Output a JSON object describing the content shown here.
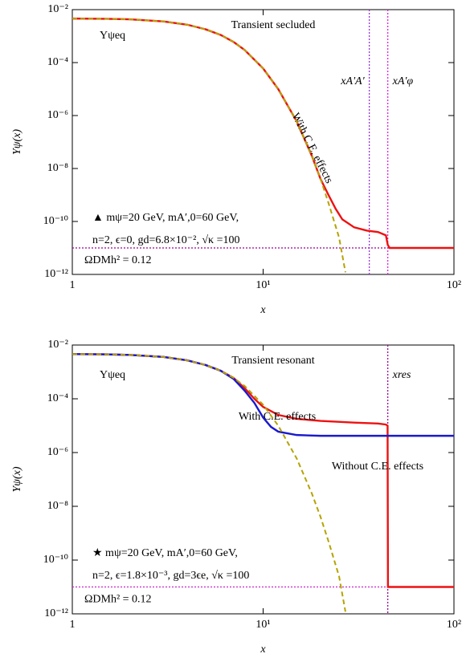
{
  "chart_data": [
    {
      "type": "line",
      "title": "Transient secluded",
      "xlabel": "x",
      "ylabel": "Yψ(x)",
      "xscale": "log",
      "yscale": "log",
      "xlim": [
        1,
        100
      ],
      "ylim": [
        1e-12,
        0.01
      ],
      "xticks": [
        1,
        {
          "value": 10,
          "label": "10¹"
        },
        {
          "value": 100,
          "label": "10²"
        }
      ],
      "yticks": [
        {
          "value": 1e-12,
          "label": "10⁻¹²"
        },
        {
          "value": 1e-10,
          "label": "10⁻¹⁰"
        },
        {
          "value": 1e-08,
          "label": "10⁻⁸"
        },
        {
          "value": 1e-06,
          "label": "10⁻⁶"
        },
        {
          "value": 0.0001,
          "label": "10⁻⁴"
        },
        {
          "value": 0.01,
          "label": "10⁻²"
        }
      ],
      "series": [
        {
          "name": "With C.E. effects",
          "color": "#ee1111",
          "dash": false,
          "x": [
            1,
            1.5,
            2,
            3,
            4,
            5,
            6,
            7,
            8,
            10,
            12,
            15,
            18,
            20,
            22,
            24,
            26,
            30,
            35,
            40,
            44,
            45,
            46,
            100
          ],
          "values": [
            0.0046,
            0.0045,
            0.0043,
            0.0036,
            0.0027,
            0.0018,
            0.0011,
            0.0006,
            0.0003,
            6e-05,
            1e-05,
            6e-07,
            3e-08,
            4e-09,
            1e-09,
            3e-10,
            1.2e-10,
            6e-11,
            4.5e-11,
            4e-11,
            3e-11,
            1.3e-11,
            1e-11,
            1e-11
          ]
        },
        {
          "name": "Yψeq",
          "color": "#b5a300",
          "dash": true,
          "x": [
            1,
            1.5,
            2,
            3,
            4,
            5,
            6,
            7,
            8,
            10,
            12,
            15,
            18,
            20,
            22,
            25,
            27
          ],
          "values": [
            0.0046,
            0.0045,
            0.0043,
            0.0036,
            0.0027,
            0.0018,
            0.0011,
            0.0006,
            0.0003,
            6e-05,
            1e-05,
            6e-07,
            3e-08,
            4e-09,
            5e-10,
            2.5e-11,
            1.2e-12
          ]
        }
      ],
      "vlines": [
        {
          "label": "xA'A'",
          "value": 36,
          "color": "#9933dd"
        },
        {
          "label": "xA'φ",
          "value": 45,
          "color": "#dd22dd"
        }
      ],
      "hlines": [
        {
          "label": "ΩDMh² = 0.12",
          "value": 1e-11,
          "color": "#990099"
        }
      ],
      "annotations": [
        "▲ mψ=20 GeV, mA′,0=60 GeV,",
        "n=2, ϵ=0, gd=6.8×10⁻², √κ =100"
      ]
    },
    {
      "type": "line",
      "title": "Transient resonant",
      "xlabel": "x",
      "ylabel": "Yψ(x)",
      "xscale": "log",
      "yscale": "log",
      "xlim": [
        1,
        100
      ],
      "ylim": [
        1e-12,
        0.01
      ],
      "xticks": [
        1,
        {
          "value": 10,
          "label": "10¹"
        },
        {
          "value": 100,
          "label": "10²"
        }
      ],
      "yticks": [
        {
          "value": 1e-12,
          "label": "10⁻¹²"
        },
        {
          "value": 1e-10,
          "label": "10⁻¹⁰"
        },
        {
          "value": 1e-08,
          "label": "10⁻⁸"
        },
        {
          "value": 1e-06,
          "label": "10⁻⁶"
        },
        {
          "value": 0.0001,
          "label": "10⁻⁴"
        },
        {
          "value": 0.01,
          "label": "10⁻²"
        }
      ],
      "series": [
        {
          "name": "With C.E. effects",
          "color": "#ee1111",
          "dash": false,
          "x": [
            1,
            1.5,
            2,
            3,
            4,
            5,
            6,
            7,
            8,
            9,
            10,
            12,
            15,
            20,
            30,
            40,
            44,
            44.9,
            45.1,
            100
          ],
          "values": [
            0.0046,
            0.0045,
            0.0043,
            0.0036,
            0.0027,
            0.0018,
            0.0011,
            0.0006,
            0.00025,
            0.0001,
            5e-05,
            2.5e-05,
            1.8e-05,
            1.5e-05,
            1.3e-05,
            1.2e-05,
            1.1e-05,
            1e-05,
            1e-11,
            1e-11
          ]
        },
        {
          "name": "Without C.E. effects",
          "color": "#1a1acc",
          "dash": false,
          "x": [
            1,
            1.5,
            2,
            3,
            4,
            5,
            6,
            7,
            8,
            9,
            10,
            11,
            12,
            15,
            20,
            50,
            100
          ],
          "values": [
            0.0046,
            0.0045,
            0.0043,
            0.0036,
            0.0027,
            0.0018,
            0.0011,
            0.00055,
            0.0002,
            7e-05,
            2e-05,
            9e-06,
            6e-06,
            4.5e-06,
            4.2e-06,
            4.2e-06,
            4.2e-06
          ]
        },
        {
          "name": "Yψeq",
          "color": "#b5a300",
          "dash": true,
          "x": [
            1,
            1.5,
            2,
            3,
            4,
            5,
            6,
            7,
            8,
            10,
            12,
            15,
            18,
            20,
            22,
            25,
            27
          ],
          "values": [
            0.0046,
            0.0045,
            0.0043,
            0.0036,
            0.0027,
            0.0018,
            0.0011,
            0.0006,
            0.0003,
            6e-05,
            1e-05,
            6e-07,
            3e-08,
            4e-09,
            5e-10,
            2.5e-11,
            1.2e-12
          ]
        }
      ],
      "vlines": [
        {
          "label": "xres",
          "value": 45,
          "color": "#990099"
        }
      ],
      "hlines": [
        {
          "label": "ΩDMh² = 0.12",
          "value": 1e-11,
          "color": "#cc22cc"
        }
      ],
      "annotations": [
        "★ mψ=20 GeV, mA′,0=60 GeV,",
        "n=2, ϵ=1.8×10⁻³, gd=3ϵe, √κ =100"
      ]
    }
  ]
}
